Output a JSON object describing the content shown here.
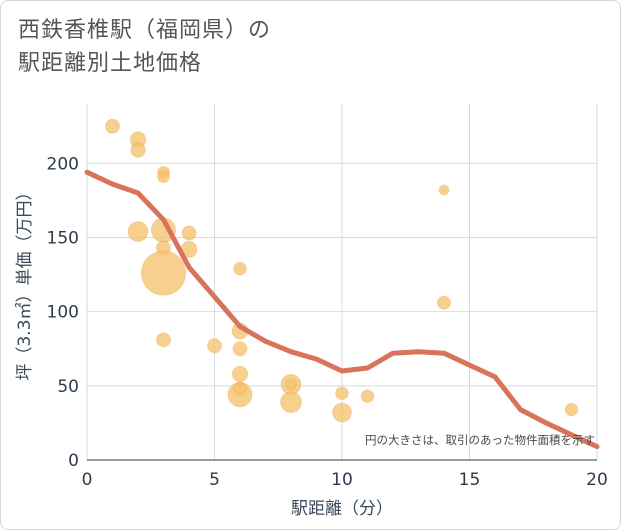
{
  "title": "西鉄香椎駅（福岡県）の\n駅距離別土地価格",
  "chart_data": {
    "type": "scatter+line",
    "title": "西鉄香椎駅（福岡県）の駅距離別土地価格",
    "xlabel": "駅距離（分）",
    "ylabel": "坪（3.3㎡）単価（万円）",
    "xlim": [
      0,
      20
    ],
    "ylim": [
      0,
      240
    ],
    "xticks": [
      0,
      5,
      10,
      15,
      20
    ],
    "yticks": [
      0,
      50,
      100,
      150,
      200
    ],
    "note": "円の大きさは、取引のあった物件面積を示す",
    "bubble_color": "#f4c069",
    "line_color": "#d9735b",
    "points": [
      {
        "x": 1,
        "y": 225,
        "size": 1
      },
      {
        "x": 2,
        "y": 216,
        "size": 1.2
      },
      {
        "x": 2,
        "y": 209,
        "size": 1.1
      },
      {
        "x": 2,
        "y": 154,
        "size": 2
      },
      {
        "x": 3,
        "y": 194,
        "size": 0.7
      },
      {
        "x": 3,
        "y": 191,
        "size": 0.7
      },
      {
        "x": 3,
        "y": 155,
        "size": 3
      },
      {
        "x": 3,
        "y": 143,
        "size": 1
      },
      {
        "x": 3,
        "y": 126,
        "size": 10
      },
      {
        "x": 3,
        "y": 81,
        "size": 1
      },
      {
        "x": 4,
        "y": 153,
        "size": 1
      },
      {
        "x": 4,
        "y": 142,
        "size": 1.3
      },
      {
        "x": 5,
        "y": 77,
        "size": 1
      },
      {
        "x": 6,
        "y": 129,
        "size": 0.8
      },
      {
        "x": 6,
        "y": 87,
        "size": 1.3
      },
      {
        "x": 6,
        "y": 75,
        "size": 1
      },
      {
        "x": 6,
        "y": 58,
        "size": 1.2
      },
      {
        "x": 6,
        "y": 48,
        "size": 1
      },
      {
        "x": 6,
        "y": 44,
        "size": 3
      },
      {
        "x": 8,
        "y": 51,
        "size": 2
      },
      {
        "x": 8,
        "y": 51,
        "size": 0.6
      },
      {
        "x": 8,
        "y": 39,
        "size": 2.2
      },
      {
        "x": 10,
        "y": 45,
        "size": 0.8
      },
      {
        "x": 10,
        "y": 32,
        "size": 1.8
      },
      {
        "x": 11,
        "y": 43,
        "size": 0.8
      },
      {
        "x": 14,
        "y": 182,
        "size": 0.5
      },
      {
        "x": 14,
        "y": 106,
        "size": 0.9
      },
      {
        "x": 19,
        "y": 34,
        "size": 0.8
      }
    ],
    "trend": {
      "x": [
        0,
        1,
        2,
        3,
        4,
        5,
        6,
        7,
        8,
        9,
        10,
        11,
        12,
        13,
        14,
        15,
        16,
        17,
        18,
        19,
        20
      ],
      "y": [
        194,
        186,
        180,
        162,
        130,
        110,
        90,
        80,
        73,
        68,
        60,
        62,
        72,
        73,
        72,
        64,
        56,
        34,
        25,
        17,
        9
      ]
    }
  }
}
